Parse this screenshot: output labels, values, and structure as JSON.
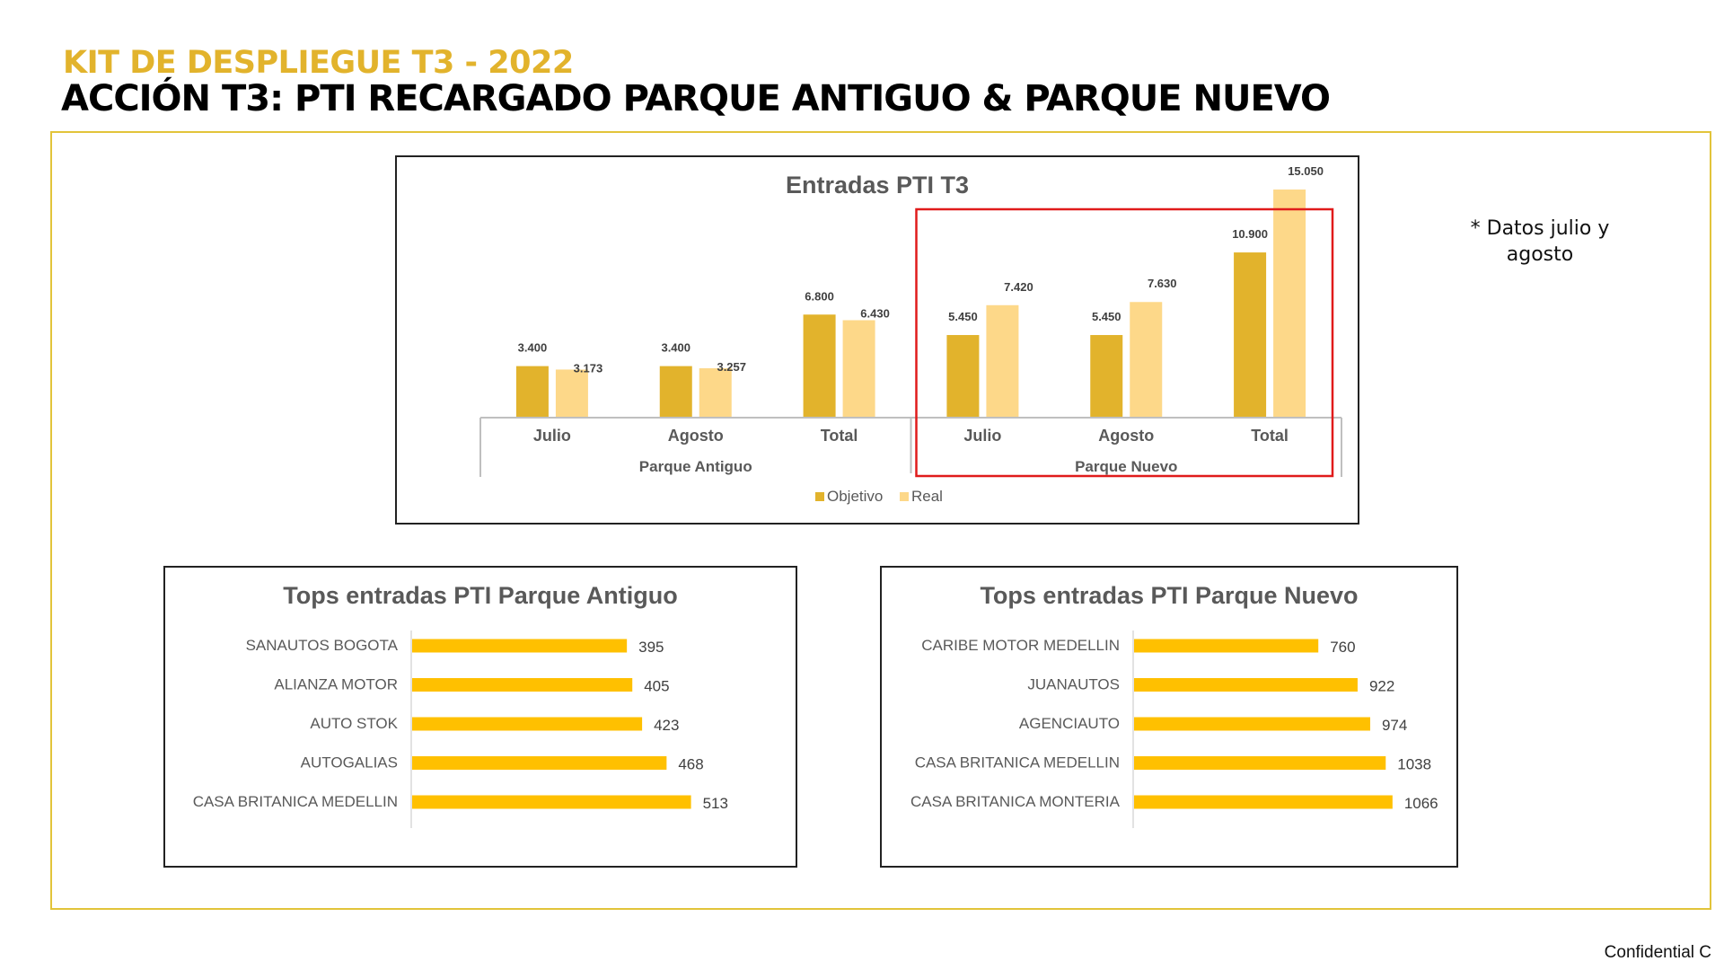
{
  "header": {
    "kit_title": "KIT DE DESPLIEGUE T3 - 2022",
    "main_title": "ACCIÓN T3: PTI RECARGADO PARQUE ANTIGUO & PARQUE NUEVO"
  },
  "side_note": {
    "line1": "* Datos julio y",
    "line2": "agosto"
  },
  "footer": {
    "confidential": "Confidential C"
  },
  "colors": {
    "objetivo": "#e2b32c",
    "real": "#fdd889",
    "tops_bar": "#ffc000",
    "highlight": "#e01b1b",
    "frame": "#e2c43a"
  },
  "chart_data": [
    {
      "type": "bar",
      "title": "Entradas PTI T3",
      "groups": [
        "Parque Antiguo",
        "Parque Nuevo"
      ],
      "categories": [
        "Julio",
        "Agosto",
        "Total",
        "Julio",
        "Agosto",
        "Total"
      ],
      "category_groups": [
        "Parque Antiguo",
        "Parque Antiguo",
        "Parque Antiguo",
        "Parque Nuevo",
        "Parque Nuevo",
        "Parque Nuevo"
      ],
      "series": [
        {
          "name": "Objetivo",
          "values": [
            3400,
            3400,
            6800,
            5450,
            5450,
            10900
          ],
          "labels": [
            "3.400",
            "3.400",
            "6.800",
            "5.450",
            "5.450",
            "10.900"
          ]
        },
        {
          "name": "Real",
          "values": [
            3173,
            3257,
            6430,
            7420,
            7630,
            15050
          ],
          "labels": [
            "3.173",
            "3.257",
            "6.430",
            "7.420",
            "7.630",
            "15.050"
          ]
        }
      ],
      "ylim": [
        0,
        16000
      ],
      "legend": "bottom",
      "grid": false,
      "highlight": "Parque Nuevo"
    },
    {
      "type": "bar",
      "orientation": "horizontal",
      "title": "Tops entradas PTI Parque Antiguo",
      "categories": [
        "SANAUTOS BOGOTA",
        "ALIANZA MOTOR",
        "AUTO STOK",
        "AUTOGALIAS",
        "CASA BRITANICA MEDELLIN"
      ],
      "values": [
        395,
        405,
        423,
        468,
        513
      ],
      "xlim": [
        0,
        550
      ],
      "grid": false
    },
    {
      "type": "bar",
      "orientation": "horizontal",
      "title": "Tops entradas PTI Parque Nuevo",
      "categories": [
        "CARIBE MOTOR MEDELLIN",
        "JUANAUTOS",
        "AGENCIAUTO",
        "CASA BRITANICA MEDELLIN",
        "CASA BRITANICA MONTERIA"
      ],
      "values": [
        760,
        922,
        974,
        1038,
        1066
      ],
      "xlim": [
        0,
        1100
      ],
      "grid": false
    }
  ]
}
